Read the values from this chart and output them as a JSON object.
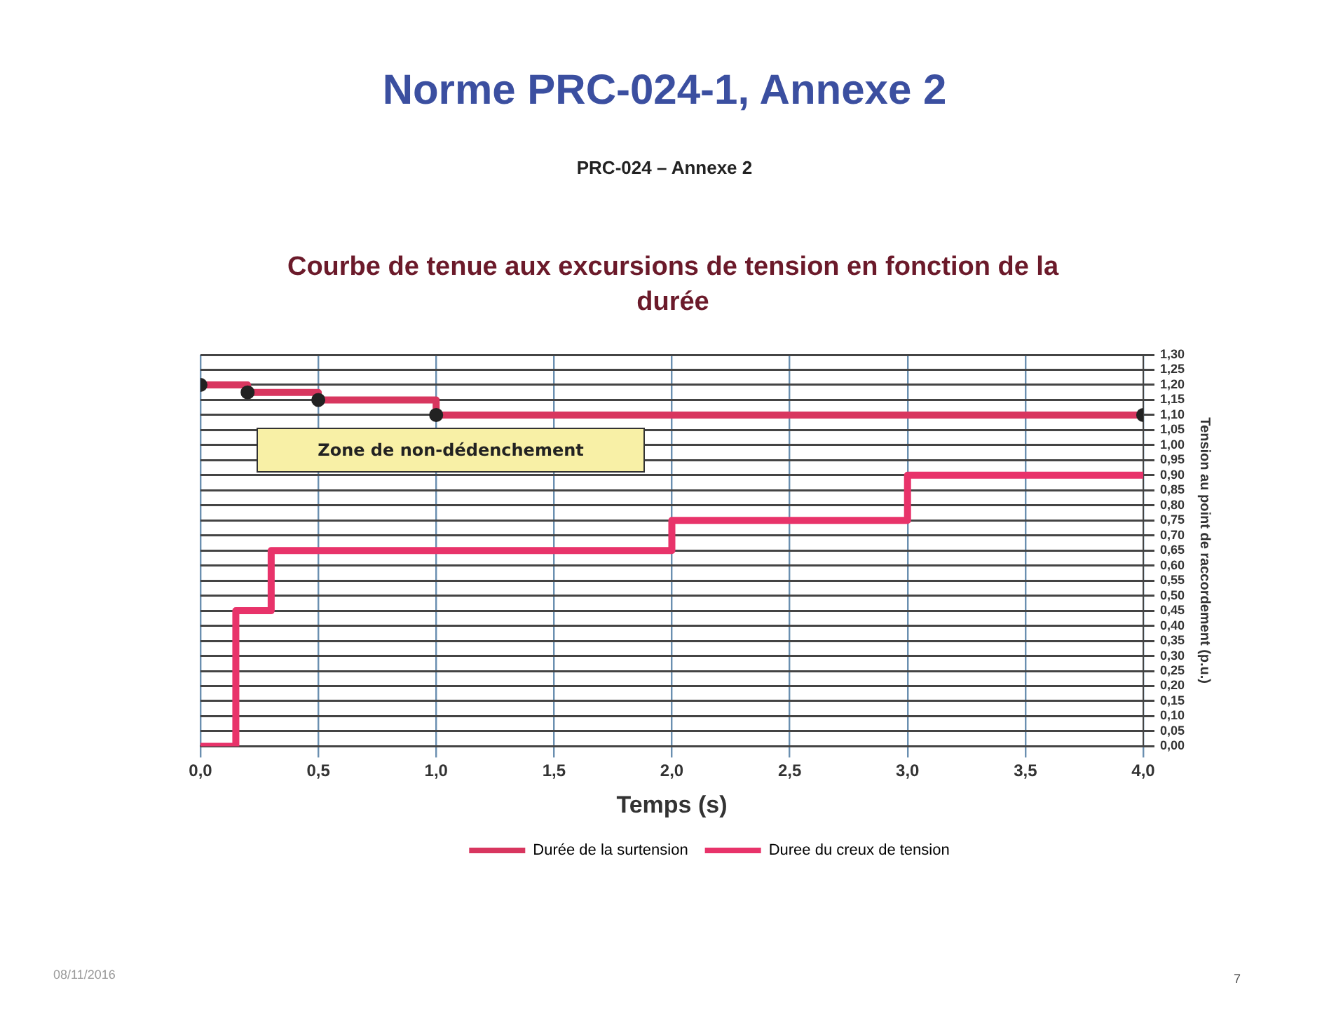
{
  "chart_data": {
    "type": "step",
    "title": "Norme PRC-024-1, Annexe 2",
    "subtitle": "PRC-024 – Annexe 2",
    "xlabel": "Temps (s)",
    "ylabel": "Tension au point de raccordement (p.u.)",
    "annotations": [
      "Courbe de tenue aux excursions de tension en fonction de la durée",
      "Zone de non-dédenchement",
      "08/11/2016",
      "7"
    ],
    "series": [
      {
        "name": "Durée de la surtension",
        "color": "#d8365f",
        "marker": "circle",
        "x": [
          0,
          0.2,
          0.5,
          1.0,
          4.0
        ],
        "values": [
          1.2,
          1.175,
          1.15,
          1.1,
          1.1
        ]
      },
      {
        "name": "Duree du creux de tension",
        "color": "#e8336a",
        "marker": "none",
        "x": [
          0,
          0.15,
          0.3,
          2.0,
          3.0,
          4.0
        ],
        "values": [
          0,
          0.45,
          0.65,
          0.75,
          0.9,
          0.9
        ]
      }
    ],
    "xlim": [
      0,
      4
    ],
    "xticks": [
      {
        "value": 0,
        "label": "0,0"
      },
      {
        "value": 0.5,
        "label": "0,5"
      },
      {
        "value": 1,
        "label": "1,0"
      },
      {
        "value": 1.5,
        "label": "1,5"
      },
      {
        "value": 2,
        "label": "2,0"
      },
      {
        "value": 2.5,
        "label": "2,5"
      },
      {
        "value": 3,
        "label": "3,0"
      },
      {
        "value": 3.5,
        "label": "3,5"
      },
      {
        "value": 4,
        "label": "4,0"
      }
    ],
    "ylim": [
      0,
      1.3
    ],
    "yticks": [
      {
        "value": 0,
        "label": "0,00"
      },
      {
        "value": 0.05,
        "label": "0,05"
      },
      {
        "value": 0.1,
        "label": "0,10"
      },
      {
        "value": 0.15,
        "label": "0,15"
      },
      {
        "value": 0.2,
        "label": "0,20"
      },
      {
        "value": 0.25,
        "label": "0,25"
      },
      {
        "value": 0.3,
        "label": "0,30"
      },
      {
        "value": 0.35,
        "label": "0,35"
      },
      {
        "value": 0.4,
        "label": "0,40"
      },
      {
        "value": 0.45,
        "label": "0,45"
      },
      {
        "value": 0.5,
        "label": "0,50"
      },
      {
        "value": 0.55,
        "label": "0,55"
      },
      {
        "value": 0.6,
        "label": "0,60"
      },
      {
        "value": 0.65,
        "label": "0,65"
      },
      {
        "value": 0.7,
        "label": "0,70"
      },
      {
        "value": 0.75,
        "label": "0,75"
      },
      {
        "value": 0.8,
        "label": "0,80"
      },
      {
        "value": 0.85,
        "label": "0,85"
      },
      {
        "value": 0.9,
        "label": "0,90"
      },
      {
        "value": 0.95,
        "label": "0,95"
      },
      {
        "value": 1.0,
        "label": "1,00"
      },
      {
        "value": 1.05,
        "label": "1,05"
      },
      {
        "value": 1.1,
        "label": "1,10"
      },
      {
        "value": 1.15,
        "label": "1,15"
      },
      {
        "value": 1.2,
        "label": "1,20"
      },
      {
        "value": 1.25,
        "label": "1,25"
      },
      {
        "value": 1.3,
        "label": "1,30"
      }
    ],
    "grid": true,
    "legend": "bottom",
    "line_style": "solid"
  }
}
